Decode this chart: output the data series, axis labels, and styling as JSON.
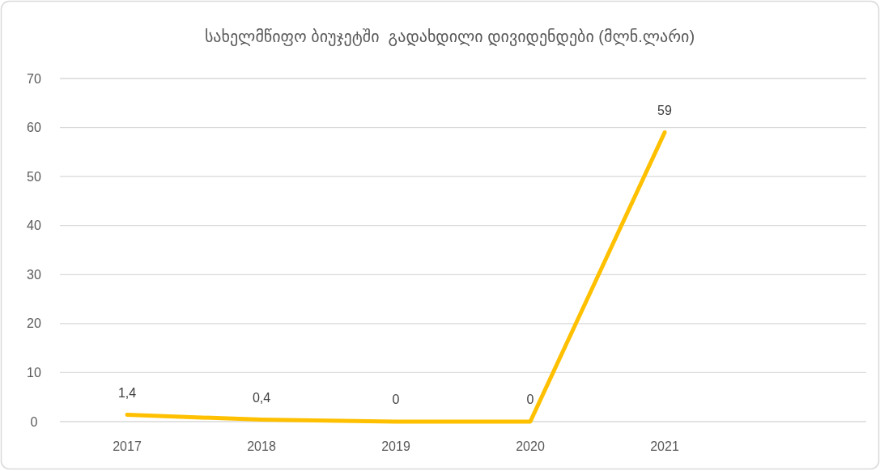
{
  "chart_data": {
    "type": "line",
    "title": "სახელმწიფო ბიუჯეტში  გადახდილი დივიდენდები (მლნ.ლარი)",
    "categories": [
      "2017",
      "2018",
      "2019",
      "2020",
      "2021",
      null
    ],
    "values": [
      1.4,
      0.4,
      0,
      0,
      59,
      null
    ],
    "color": "#ffc000",
    "value_labels": [
      "1,4",
      "0,4",
      "0",
      "0",
      "59",
      null
    ],
    "ylim": [
      0,
      70
    ],
    "yticks": [
      0,
      10,
      20,
      30,
      40,
      50,
      60,
      70
    ],
    "grid": "y",
    "marker": "none",
    "line_style": "solid"
  }
}
